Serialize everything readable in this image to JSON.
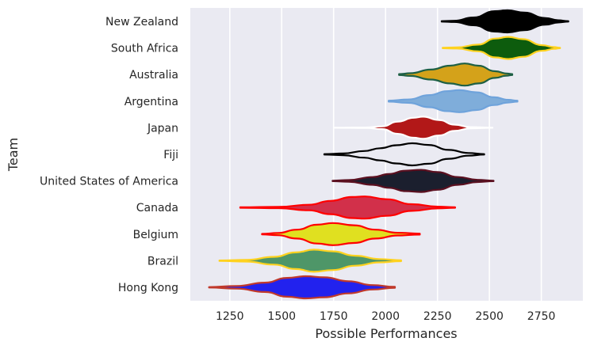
{
  "chart_data": {
    "type": "violin",
    "orientation": "horizontal",
    "title": "",
    "xlabel": "Possible Performances",
    "ylabel": "Team",
    "xlim": [
      1060,
      2950
    ],
    "xticks": [
      1250,
      1500,
      1750,
      2000,
      2250,
      2500,
      2750
    ],
    "grid": true,
    "background": "#eaeaf2",
    "series": [
      {
        "name": "New Zealand",
        "fill": "#000000",
        "edge": "#000000",
        "range": [
          2270,
          2880
        ],
        "profile": [
          [
            0,
            0.02
          ],
          [
            0.1,
            0.06
          ],
          [
            0.25,
            0.35
          ],
          [
            0.42,
            0.92
          ],
          [
            0.52,
            1.0
          ],
          [
            0.65,
            0.8
          ],
          [
            0.82,
            0.3
          ],
          [
            0.92,
            0.1
          ],
          [
            1,
            0.02
          ]
        ]
      },
      {
        "name": "South Africa",
        "fill": "#0d5c0d",
        "edge": "#ffd21f",
        "range": [
          2275,
          2840
        ],
        "profile": [
          [
            0,
            0.02
          ],
          [
            0.12,
            0.05
          ],
          [
            0.3,
            0.3
          ],
          [
            0.45,
            0.85
          ],
          [
            0.56,
            1.0
          ],
          [
            0.68,
            0.8
          ],
          [
            0.85,
            0.25
          ],
          [
            0.95,
            0.08
          ],
          [
            1,
            0.02
          ]
        ]
      },
      {
        "name": "Australia",
        "fill": "#d4a21a",
        "edge": "#1e6045",
        "range": [
          2065,
          2610
        ],
        "profile": [
          [
            0,
            0.04
          ],
          [
            0.1,
            0.12
          ],
          [
            0.28,
            0.45
          ],
          [
            0.45,
            0.8
          ],
          [
            0.58,
            1.0
          ],
          [
            0.7,
            0.8
          ],
          [
            0.85,
            0.3
          ],
          [
            0.95,
            0.1
          ],
          [
            1,
            0.04
          ]
        ]
      },
      {
        "name": "Argentina",
        "fill": "#7fadda",
        "edge": "#6fa3db",
        "range": [
          2015,
          2635
        ],
        "profile": [
          [
            0,
            0.04
          ],
          [
            0.15,
            0.15
          ],
          [
            0.32,
            0.55
          ],
          [
            0.45,
            0.9
          ],
          [
            0.55,
            1.0
          ],
          [
            0.68,
            0.8
          ],
          [
            0.82,
            0.35
          ],
          [
            0.93,
            0.12
          ],
          [
            1,
            0.04
          ]
        ]
      },
      {
        "name": "Japan",
        "fill": "#b21818",
        "edge": "#ffffff",
        "range": [
          1755,
          2515
        ],
        "profile": [
          [
            0,
            0.0
          ],
          [
            0.2,
            0.02
          ],
          [
            0.3,
            0.12
          ],
          [
            0.4,
            0.55
          ],
          [
            0.5,
            0.9
          ],
          [
            0.56,
            1.0
          ],
          [
            0.66,
            0.7
          ],
          [
            0.76,
            0.28
          ],
          [
            0.86,
            0.06
          ],
          [
            1,
            0.0
          ]
        ]
      },
      {
        "name": "Fiji",
        "fill": "#eaeaf2",
        "edge": "#000000",
        "range": [
          1705,
          2475
        ],
        "profile": [
          [
            0,
            0.02
          ],
          [
            0.12,
            0.08
          ],
          [
            0.25,
            0.3
          ],
          [
            0.35,
            0.55
          ],
          [
            0.45,
            0.82
          ],
          [
            0.55,
            1.0
          ],
          [
            0.65,
            0.85
          ],
          [
            0.78,
            0.4
          ],
          [
            0.9,
            0.12
          ],
          [
            1,
            0.02
          ]
        ]
      },
      {
        "name": "United States of America",
        "fill": "#1b1f2e",
        "edge": "#5b1020",
        "range": [
          1745,
          2520
        ],
        "profile": [
          [
            0,
            0.02
          ],
          [
            0.1,
            0.08
          ],
          [
            0.25,
            0.35
          ],
          [
            0.35,
            0.62
          ],
          [
            0.45,
            0.92
          ],
          [
            0.55,
            1.0
          ],
          [
            0.65,
            0.8
          ],
          [
            0.78,
            0.35
          ],
          [
            0.9,
            0.1
          ],
          [
            1,
            0.02
          ]
        ]
      },
      {
        "name": "Canada",
        "fill": "#d2304a",
        "edge": "#ff0000",
        "range": [
          1300,
          2335
        ],
        "profile": [
          [
            0,
            0.02
          ],
          [
            0.18,
            0.06
          ],
          [
            0.32,
            0.25
          ],
          [
            0.42,
            0.6
          ],
          [
            0.52,
            0.95
          ],
          [
            0.58,
            1.0
          ],
          [
            0.68,
            0.75
          ],
          [
            0.8,
            0.3
          ],
          [
            0.92,
            0.08
          ],
          [
            1,
            0.02
          ]
        ]
      },
      {
        "name": "Belgium",
        "fill": "#e0e020",
        "edge": "#ff0000",
        "range": [
          1405,
          2165
        ],
        "profile": [
          [
            0,
            0.02
          ],
          [
            0.1,
            0.1
          ],
          [
            0.22,
            0.4
          ],
          [
            0.35,
            0.85
          ],
          [
            0.45,
            1.0
          ],
          [
            0.58,
            0.8
          ],
          [
            0.72,
            0.4
          ],
          [
            0.86,
            0.12
          ],
          [
            1,
            0.04
          ]
        ]
      },
      {
        "name": "Brazil",
        "fill": "#4e9668",
        "edge": "#ffd21f",
        "range": [
          1200,
          2075
        ],
        "profile": [
          [
            0,
            0.02
          ],
          [
            0.15,
            0.08
          ],
          [
            0.3,
            0.35
          ],
          [
            0.42,
            0.75
          ],
          [
            0.52,
            1.0
          ],
          [
            0.62,
            0.85
          ],
          [
            0.75,
            0.45
          ],
          [
            0.88,
            0.15
          ],
          [
            1,
            0.04
          ]
        ]
      },
      {
        "name": "Hong Kong",
        "fill": "#2222ee",
        "edge": "#c0392b",
        "range": [
          1150,
          2045
        ],
        "profile": [
          [
            0,
            0.02
          ],
          [
            0.15,
            0.12
          ],
          [
            0.3,
            0.42
          ],
          [
            0.42,
            0.85
          ],
          [
            0.52,
            1.0
          ],
          [
            0.62,
            0.9
          ],
          [
            0.75,
            0.55
          ],
          [
            0.88,
            0.2
          ],
          [
            1,
            0.04
          ]
        ]
      }
    ]
  }
}
